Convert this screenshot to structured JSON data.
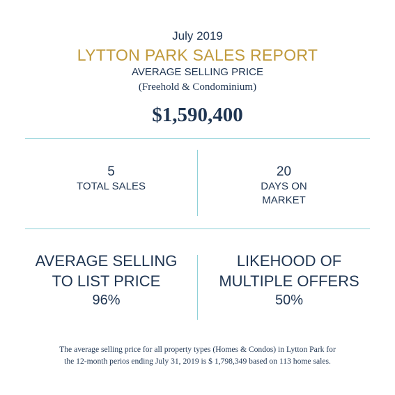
{
  "header": {
    "month": "July 2019",
    "title": "LYTTON PARK SALES REPORT",
    "subtitle": "AVERAGE SELLING PRICE",
    "subnote": "(Freehold & Condominium)",
    "price": "$1,590,400"
  },
  "stats": {
    "total_sales": {
      "value": "5",
      "label": "TOTAL SALES"
    },
    "days_on_market": {
      "value": "20",
      "label_line1": "DAYS ON",
      "label_line2": "MARKET"
    },
    "selling_to_list": {
      "label_line1": "AVERAGE SELLING",
      "label_line2": "TO LIST PRICE",
      "value": "96%"
    },
    "multiple_offers": {
      "label_line1": "LIKEHOOD OF",
      "label_line2": "MULTIPLE OFFERS",
      "value": "50%"
    }
  },
  "footnote": {
    "line1": "The average selling price for all property types (Homes & Condos) in Lytton Park for",
    "line2": "the 12-month perios ending July 31, 2019 is $ 1,798,349 based on 113 home sales."
  },
  "colors": {
    "navy": "#1f3552",
    "gold": "#c09a3c",
    "divider": "#8fd1d8"
  }
}
